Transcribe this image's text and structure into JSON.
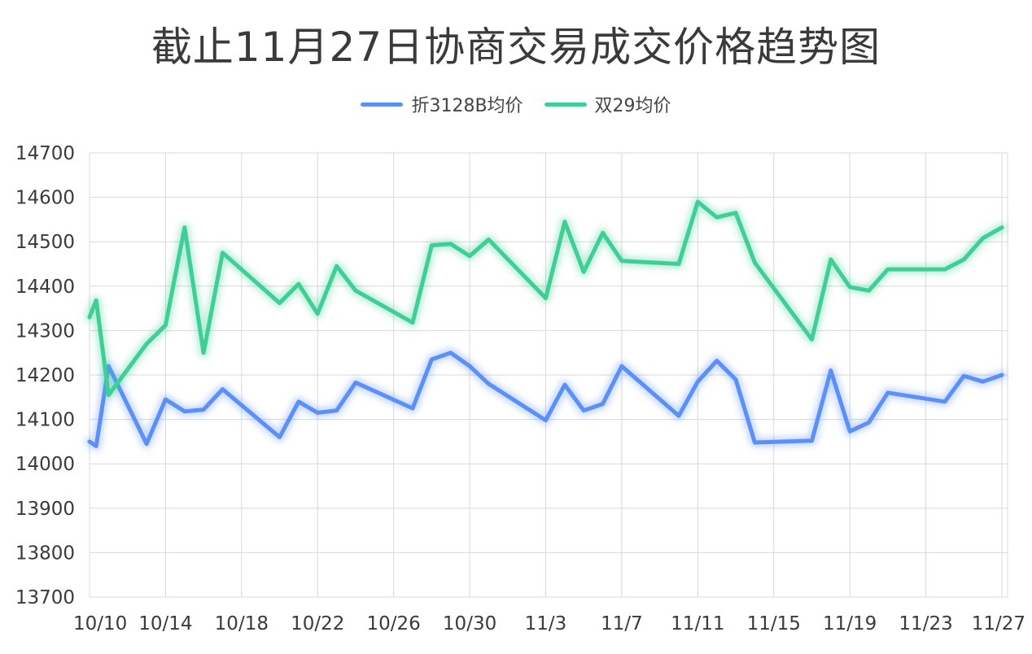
{
  "chart_data": {
    "type": "line",
    "title": "截止11月27日协商交易成交价格趋势图",
    "xlabel": "",
    "ylabel": "",
    "ylim": [
      13700,
      14700
    ],
    "yticks": [
      13700,
      13800,
      13900,
      14000,
      14100,
      14200,
      14300,
      14400,
      14500,
      14600,
      14700
    ],
    "xticks": [
      "10/10",
      "10/14",
      "10/18",
      "10/22",
      "10/26",
      "10/30",
      "11/3",
      "11/7",
      "11/11",
      "11/15",
      "11/19",
      "11/23",
      "11/27"
    ],
    "grid": true,
    "legend_position": "top-center",
    "series": [
      {
        "name": "折3128B均价",
        "color": "#5b8ff9",
        "points": [
          [
            "10/10",
            14050
          ],
          [
            "10/10",
            14040
          ],
          [
            "10/11",
            14220
          ],
          [
            "10/13",
            14045
          ],
          [
            "10/14",
            14145
          ],
          [
            "10/15",
            14118
          ],
          [
            "10/16",
            14122
          ],
          [
            "10/17",
            14168
          ],
          [
            "10/20",
            14060
          ],
          [
            "10/21",
            14140
          ],
          [
            "10/22",
            14115
          ],
          [
            "10/23",
            14120
          ],
          [
            "10/24",
            14183
          ],
          [
            "10/27",
            14125
          ],
          [
            "10/28",
            14235
          ],
          [
            "10/29",
            14250
          ],
          [
            "10/30",
            14220
          ],
          [
            "10/31",
            14180
          ],
          [
            "11/3",
            14098
          ],
          [
            "11/4",
            14178
          ],
          [
            "11/5",
            14120
          ],
          [
            "11/6",
            14135
          ],
          [
            "11/7",
            14220
          ],
          [
            "11/10",
            14108
          ],
          [
            "11/11",
            14185
          ],
          [
            "11/12",
            14232
          ],
          [
            "11/13",
            14190
          ],
          [
            "11/14",
            14048
          ],
          [
            "11/17",
            14052
          ],
          [
            "11/18",
            14210
          ],
          [
            "11/19",
            14073
          ],
          [
            "11/20",
            14093
          ],
          [
            "11/21",
            14160
          ],
          [
            "11/24",
            14140
          ],
          [
            "11/25",
            14198
          ],
          [
            "11/26",
            14185
          ],
          [
            "11/27",
            14200
          ]
        ]
      },
      {
        "name": "双29均价",
        "color": "#3ecf96",
        "points": [
          [
            "10/10",
            14330
          ],
          [
            "10/10",
            14368
          ],
          [
            "10/11",
            14155
          ],
          [
            "10/13",
            14270
          ],
          [
            "10/14",
            14312
          ],
          [
            "10/15",
            14532
          ],
          [
            "10/16",
            14250
          ],
          [
            "10/17",
            14475
          ],
          [
            "10/20",
            14362
          ],
          [
            "10/21",
            14405
          ],
          [
            "10/22",
            14338
          ],
          [
            "10/23",
            14445
          ],
          [
            "10/24",
            14390
          ],
          [
            "10/27",
            14318
          ],
          [
            "10/28",
            14492
          ],
          [
            "10/29",
            14495
          ],
          [
            "10/30",
            14468
          ],
          [
            "10/31",
            14505
          ],
          [
            "11/3",
            14373
          ],
          [
            "11/4",
            14545
          ],
          [
            "11/5",
            14432
          ],
          [
            "11/6",
            14520
          ],
          [
            "11/7",
            14457
          ],
          [
            "11/10",
            14450
          ],
          [
            "11/11",
            14590
          ],
          [
            "11/12",
            14555
          ],
          [
            "11/13",
            14565
          ],
          [
            "11/14",
            14453
          ],
          [
            "11/17",
            14280
          ],
          [
            "11/18",
            14460
          ],
          [
            "11/19",
            14398
          ],
          [
            "11/20",
            14390
          ],
          [
            "11/21",
            14438
          ],
          [
            "11/24",
            14438
          ],
          [
            "11/25",
            14460
          ],
          [
            "11/26",
            14508
          ],
          [
            "11/27",
            14532
          ]
        ]
      }
    ]
  }
}
